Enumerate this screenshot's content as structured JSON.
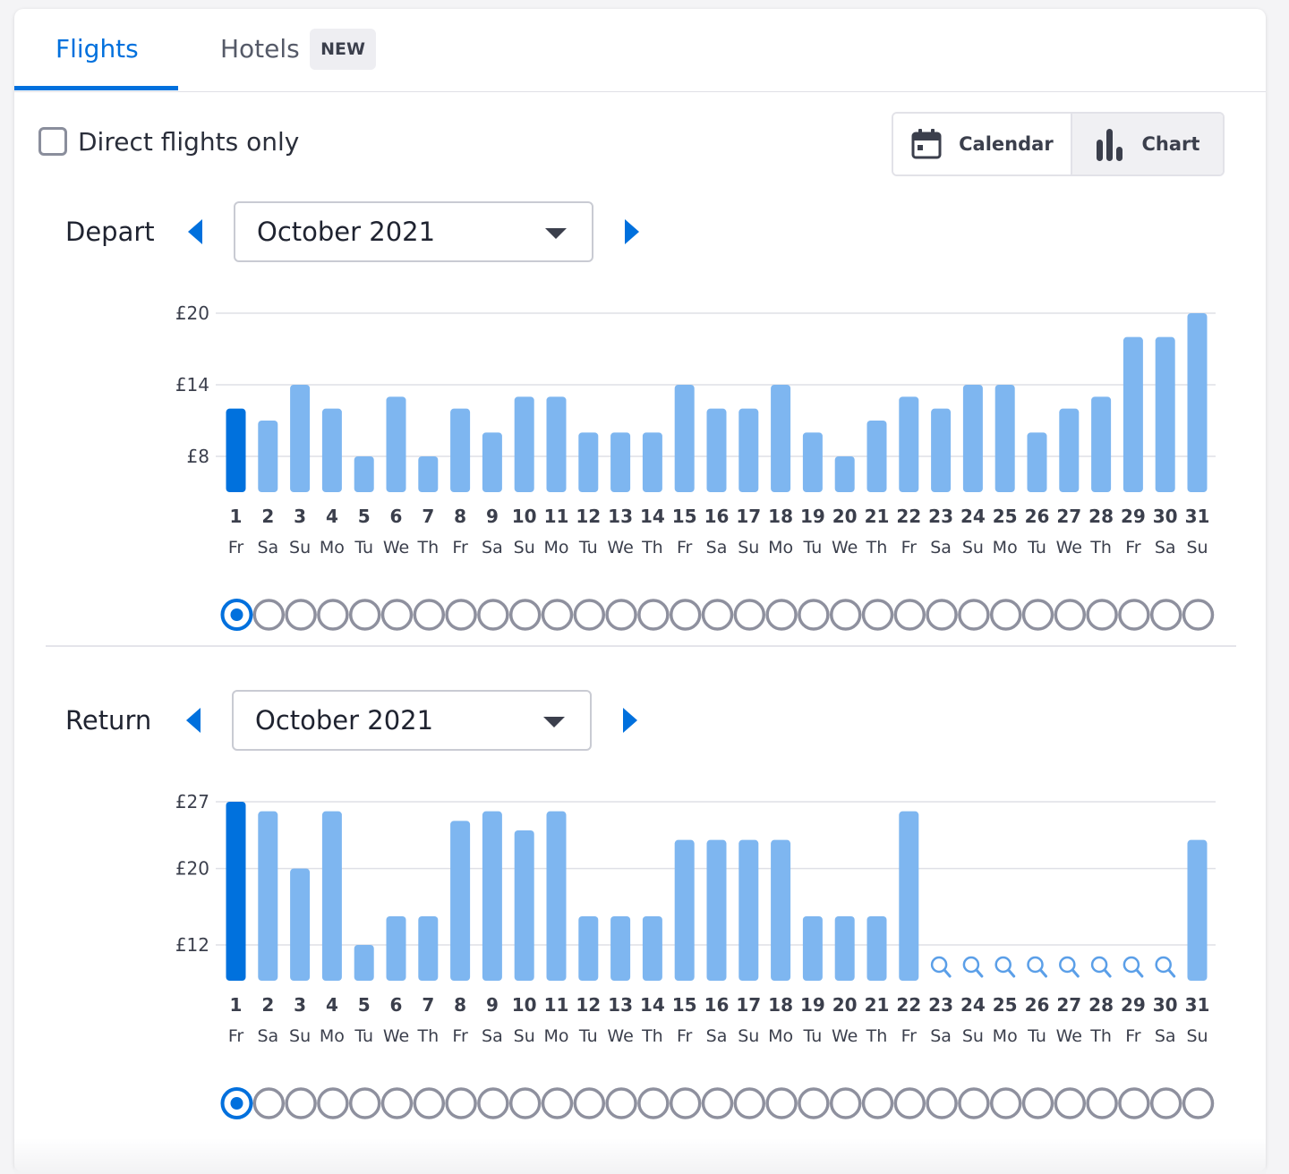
{
  "tabs": {
    "flights": "Flights",
    "hotels": "Hotels",
    "hotels_badge": "NEW"
  },
  "filters": {
    "direct_label": "Direct flights only",
    "direct_checked": false
  },
  "view_toggle": {
    "calendar_label": "Calendar",
    "chart_label": "Chart",
    "calendar_icon": "calendar-icon",
    "chart_icon": "bar-chart-icon",
    "active": "chart"
  },
  "colors": {
    "accent": "#0070dd",
    "bar": "#7eb6f0",
    "bar_selected": "#0071dd",
    "radio_border": "#8e909e"
  },
  "depart": {
    "label": "Depart",
    "month": "October 2021",
    "prev_icon": "caret-left-icon",
    "next_icon": "caret-right-icon"
  },
  "return": {
    "label": "Return",
    "month": "October 2021",
    "prev_icon": "caret-left-icon",
    "next_icon": "caret-right-icon"
  },
  "chart_data": [
    {
      "type": "bar",
      "name": "Depart",
      "categories": [
        "1",
        "2",
        "3",
        "4",
        "5",
        "6",
        "7",
        "8",
        "9",
        "10",
        "11",
        "12",
        "13",
        "14",
        "15",
        "16",
        "17",
        "18",
        "19",
        "20",
        "21",
        "22",
        "23",
        "24",
        "25",
        "26",
        "27",
        "28",
        "29",
        "30",
        "31"
      ],
      "weekdays": [
        "Fr",
        "Sa",
        "Su",
        "Mo",
        "Tu",
        "We",
        "Th",
        "Fr",
        "Sa",
        "Su",
        "Mo",
        "Tu",
        "We",
        "Th",
        "Fr",
        "Sa",
        "Su",
        "Mo",
        "Tu",
        "We",
        "Th",
        "Fr",
        "Sa",
        "Su",
        "Mo",
        "Tu",
        "We",
        "Th",
        "Fr",
        "Sa",
        "Su"
      ],
      "values": [
        12,
        11,
        14,
        12,
        8,
        13,
        8,
        12,
        10,
        13,
        13,
        10,
        10,
        10,
        14,
        12,
        12,
        14,
        10,
        8,
        11,
        13,
        12,
        14,
        14,
        10,
        12,
        13,
        18,
        18,
        20
      ],
      "selected_index": 0,
      "yticks": [
        8,
        14,
        20
      ],
      "ytick_labels": [
        "£8",
        "£14",
        "£20"
      ],
      "ylim": [
        8,
        20
      ]
    },
    {
      "type": "bar",
      "name": "Return",
      "categories": [
        "1",
        "2",
        "3",
        "4",
        "5",
        "6",
        "7",
        "8",
        "9",
        "10",
        "11",
        "12",
        "13",
        "14",
        "15",
        "16",
        "17",
        "18",
        "19",
        "20",
        "21",
        "22",
        "23",
        "24",
        "25",
        "26",
        "27",
        "28",
        "29",
        "30",
        "31"
      ],
      "weekdays": [
        "Fr",
        "Sa",
        "Su",
        "Mo",
        "Tu",
        "We",
        "Th",
        "Fr",
        "Sa",
        "Su",
        "Mo",
        "Tu",
        "We",
        "Th",
        "Fr",
        "Sa",
        "Su",
        "Mo",
        "Tu",
        "We",
        "Th",
        "Fr",
        "Sa",
        "Su",
        "Mo",
        "Tu",
        "We",
        "Th",
        "Fr",
        "Sa",
        "Su"
      ],
      "values": [
        27,
        26,
        20,
        26,
        12,
        15,
        15,
        25,
        26,
        24,
        26,
        15,
        15,
        15,
        23,
        23,
        23,
        23,
        15,
        15,
        15,
        26,
        null,
        null,
        null,
        null,
        null,
        null,
        null,
        null,
        23
      ],
      "selected_index": 0,
      "yticks": [
        12,
        20,
        27
      ],
      "ytick_labels": [
        "£12",
        "£20",
        "£27"
      ],
      "ylim": [
        12,
        27
      ],
      "missing_icon": "search-icon"
    }
  ]
}
